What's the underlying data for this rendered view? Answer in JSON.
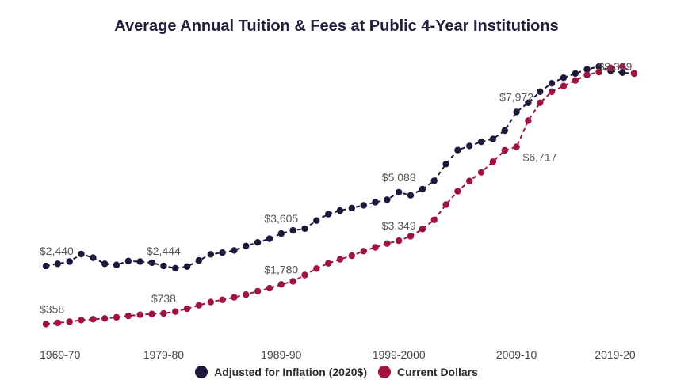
{
  "chart_data": {
    "type": "line",
    "title": "Average Annual Tuition & Fees at Public 4-Year Institutions",
    "xlabel": "",
    "ylabel": "",
    "x_tick_labels": [
      "1969-70",
      "1979-80",
      "1989-90",
      "1999-2000",
      "2009-10",
      "2019-20"
    ],
    "ylim": [
      0,
      10000
    ],
    "grid": false,
    "legend_position": "bottom",
    "x": [
      "1969-70",
      "1970-71",
      "1971-72",
      "1972-73",
      "1973-74",
      "1974-75",
      "1975-76",
      "1976-77",
      "1977-78",
      "1978-79",
      "1979-80",
      "1980-81",
      "1981-82",
      "1982-83",
      "1983-84",
      "1984-85",
      "1985-86",
      "1986-87",
      "1987-88",
      "1988-89",
      "1989-90",
      "1990-91",
      "1991-92",
      "1992-93",
      "1993-94",
      "1994-95",
      "1995-96",
      "1996-97",
      "1997-98",
      "1998-99",
      "1999-2000",
      "2000-01",
      "2001-02",
      "2002-03",
      "2003-04",
      "2004-05",
      "2005-06",
      "2006-07",
      "2007-08",
      "2008-09",
      "2009-10",
      "2010-11",
      "2011-12",
      "2012-13",
      "2013-14",
      "2014-15",
      "2015-16",
      "2016-17",
      "2017-18",
      "2018-19",
      "2019-20"
    ],
    "series": [
      {
        "name": "Adjusted for Inflation (2020$)",
        "color": "#1c1a3c",
        "values": [
          2440,
          2520,
          2600,
          2870,
          2740,
          2520,
          2480,
          2620,
          2600,
          2560,
          2444,
          2360,
          2420,
          2640,
          2860,
          2920,
          3000,
          3160,
          3290,
          3420,
          3605,
          3720,
          3780,
          4070,
          4300,
          4430,
          4520,
          4620,
          4730,
          4820,
          5088,
          4980,
          5200,
          5500,
          6100,
          6600,
          6750,
          6900,
          7000,
          7300,
          7972,
          8300,
          8700,
          9000,
          9200,
          9350,
          9500,
          9600,
          9450,
          9380,
          9349
        ]
      },
      {
        "name": "Current Dollars",
        "color": "#a1133f",
        "values": [
          358,
          400,
          440,
          500,
          530,
          560,
          600,
          650,
          690,
          720,
          738,
          804,
          909,
          1031,
          1148,
          1228,
          1318,
          1414,
          1537,
          1646,
          1780,
          1888,
          2117,
          2349,
          2537,
          2681,
          2811,
          2975,
          3111,
          3247,
          3349,
          3508,
          3766,
          4098,
          4645,
          5126,
          5492,
          5804,
          6185,
          6591,
          6717,
          7658,
          8300,
          8700,
          8900,
          9100,
          9300,
          9400,
          9550,
          9600,
          9349
        ]
      }
    ],
    "annotations": [
      {
        "series": 0,
        "index": 0,
        "text": "$2,440"
      },
      {
        "series": 0,
        "index": 10,
        "text": "$2,444"
      },
      {
        "series": 0,
        "index": 20,
        "text": "$3,605"
      },
      {
        "series": 0,
        "index": 30,
        "text": "$5,088"
      },
      {
        "series": 0,
        "index": 40,
        "text": "$7,972"
      },
      {
        "series": 0,
        "index": 50,
        "text": "$9,349"
      },
      {
        "series": 1,
        "index": 0,
        "text": "$358"
      },
      {
        "series": 1,
        "index": 10,
        "text": "$738"
      },
      {
        "series": 1,
        "index": 20,
        "text": "$1,780"
      },
      {
        "series": 1,
        "index": 30,
        "text": "$3,349"
      },
      {
        "series": 1,
        "index": 40,
        "text": "$6,717"
      }
    ]
  }
}
